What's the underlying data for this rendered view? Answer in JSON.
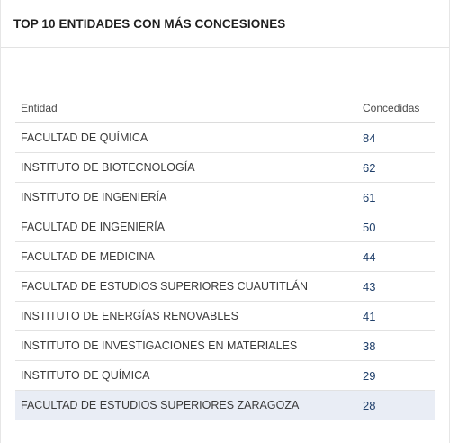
{
  "panel": {
    "title": "TOP 10 ENTIDADES CON MÁS CONCESIONES"
  },
  "table": {
    "headers": {
      "entity": "Entidad",
      "count": "Concedidas"
    },
    "rows": [
      {
        "entity": "FACULTAD DE QUÍMICA",
        "count": "84"
      },
      {
        "entity": "INSTITUTO DE BIOTECNOLOGÍA",
        "count": "62"
      },
      {
        "entity": "INSTITUTO DE INGENIERÍA",
        "count": "61"
      },
      {
        "entity": "FACULTAD DE INGENIERÍA",
        "count": "50"
      },
      {
        "entity": "FACULTAD DE MEDICINA",
        "count": "44"
      },
      {
        "entity": "FACULTAD DE ESTUDIOS SUPERIORES CUAUTITLÁN",
        "count": "43"
      },
      {
        "entity": "INSTITUTO DE ENERGÍAS RENOVABLES",
        "count": "41"
      },
      {
        "entity": "INSTITUTO DE INVESTIGACIONES EN MATERIALES",
        "count": "38"
      },
      {
        "entity": "INSTITUTO DE QUÍMICA",
        "count": "29"
      },
      {
        "entity": "FACULTAD DE ESTUDIOS SUPERIORES ZARAGOZA",
        "count": "28"
      }
    ]
  },
  "colors": {
    "count_text": "#1f3f6a",
    "highlight_row": "#e9edf5"
  }
}
